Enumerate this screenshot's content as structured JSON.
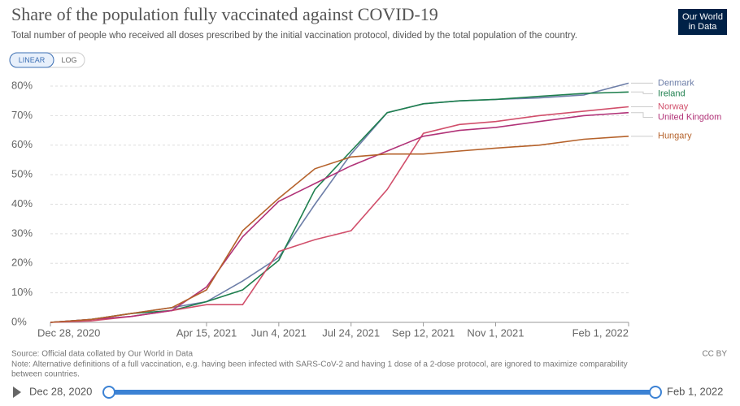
{
  "chart_data": {
    "type": "line",
    "title": "Share of the population fully vaccinated against COVID-19",
    "subtitle": "Total number of people who received all doses prescribed by the initial vaccination protocol, divided by the total population of the country.",
    "x": [
      "2020-12-28",
      "2021-01-25",
      "2021-02-22",
      "2021-03-22",
      "2021-04-15",
      "2021-05-10",
      "2021-06-04",
      "2021-06-29",
      "2021-07-24",
      "2021-08-18",
      "2021-09-12",
      "2021-10-07",
      "2021-11-01",
      "2021-12-01",
      "2022-01-01",
      "2022-02-01"
    ],
    "series": [
      {
        "name": "Denmark",
        "color": "#6d7ea8",
        "values": [
          0,
          1,
          3,
          5,
          7,
          14,
          22,
          40,
          57,
          71,
          74,
          75,
          75.5,
          76,
          77,
          81
        ]
      },
      {
        "name": "Ireland",
        "color": "#1e7f4e",
        "values": [
          0,
          1,
          3,
          4,
          7,
          11,
          21,
          45,
          58,
          71,
          74,
          75,
          75.5,
          76.5,
          77.5,
          78
        ]
      },
      {
        "name": "Norway",
        "color": "#d14f6b",
        "values": [
          0,
          0.5,
          2,
          4,
          6,
          6,
          24,
          28,
          31,
          45,
          64,
          67,
          68,
          70,
          71.5,
          73
        ]
      },
      {
        "name": "United Kingdom",
        "color": "#b13378",
        "values": [
          0,
          1,
          2,
          4,
          12,
          29,
          41,
          47,
          53,
          58,
          63,
          65,
          66,
          68,
          70,
          71
        ]
      },
      {
        "name": "Hungary",
        "color": "#b5622b",
        "values": [
          0,
          1,
          3,
          5,
          11,
          31,
          42,
          52,
          56,
          57,
          57,
          58,
          59,
          60,
          62,
          63
        ]
      }
    ],
    "xlim": [
      "2020-12-28",
      "2022-02-01"
    ],
    "xticks": [
      {
        "value": "2020-12-28",
        "label": "Dec 28, 2020"
      },
      {
        "value": "2021-04-15",
        "label": "Apr 15, 2021"
      },
      {
        "value": "2021-06-04",
        "label": "Jun 4, 2021"
      },
      {
        "value": "2021-07-24",
        "label": "Jul 24, 2021"
      },
      {
        "value": "2021-09-12",
        "label": "Sep 12, 2021"
      },
      {
        "value": "2021-11-01",
        "label": "Nov 1, 2021"
      },
      {
        "value": "2022-02-01",
        "label": "Feb 1, 2022"
      }
    ],
    "ylim": [
      0,
      80
    ],
    "yticks": [
      {
        "value": 0,
        "label": "0%"
      },
      {
        "value": 10,
        "label": "10%"
      },
      {
        "value": 20,
        "label": "20%"
      },
      {
        "value": 30,
        "label": "30%"
      },
      {
        "value": 40,
        "label": "40%"
      },
      {
        "value": 50,
        "label": "50%"
      },
      {
        "value": 60,
        "label": "60%"
      },
      {
        "value": 70,
        "label": "70%"
      },
      {
        "value": 80,
        "label": "80%"
      }
    ],
    "grid": true,
    "legend": "right"
  },
  "controls": {
    "linear": "LINEAR",
    "log": "LOG"
  },
  "logo": {
    "line1": "Our World",
    "line2": "in Data"
  },
  "footer": {
    "source": "Source: Official data collated by Our World in Data",
    "note": "Note: Alternative definitions of a full vaccination, e.g. having been infected with SARS-CoV-2 and having 1 dose of a 2-dose protocol, are ignored to maximize comparability",
    "note2": "between countries.",
    "license": "CC BY"
  },
  "timeline": {
    "start": "Dec 28, 2020",
    "end": "Feb 1, 2022"
  }
}
